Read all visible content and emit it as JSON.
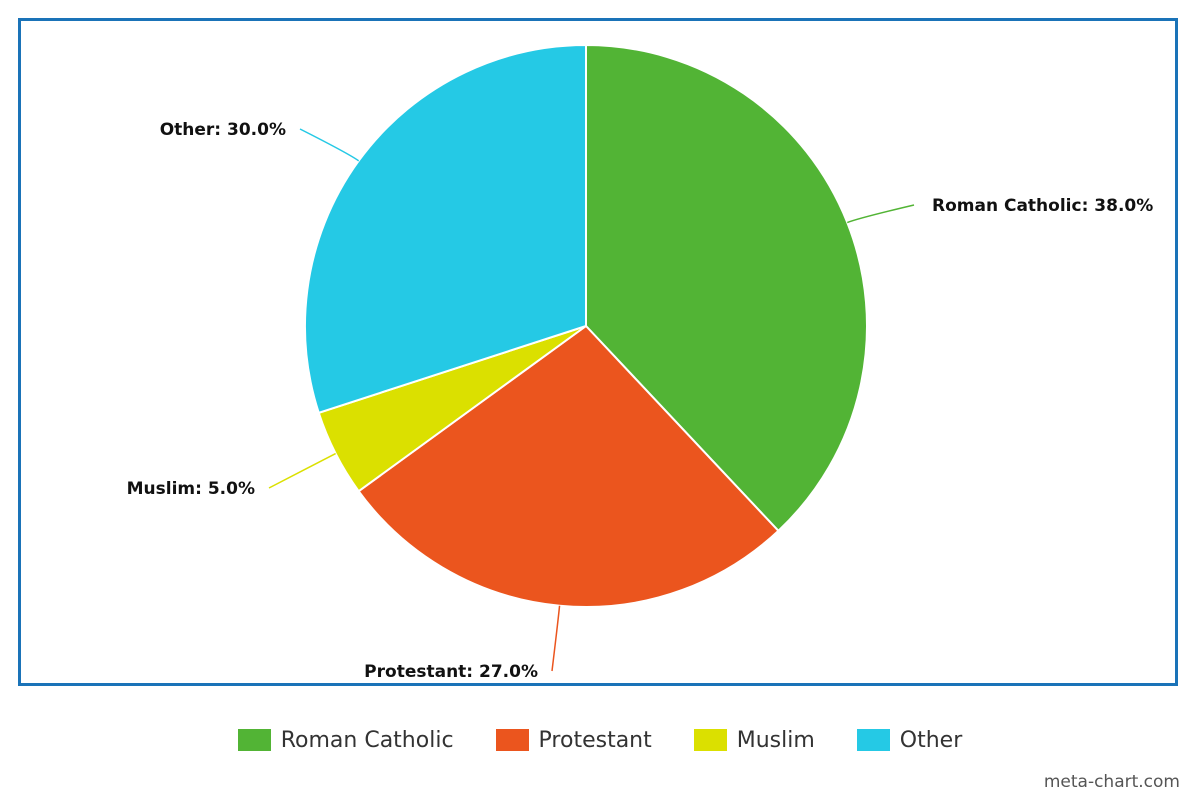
{
  "chart_data": {
    "type": "pie",
    "title": "",
    "slices": [
      {
        "label": "Roman Catholic",
        "value": 38.0,
        "display": "Roman Catholic: 38.0%",
        "color": "#52b435"
      },
      {
        "label": "Protestant",
        "value": 27.0,
        "display": "Protestant: 27.0%",
        "color": "#eb551e"
      },
      {
        "label": "Muslim",
        "value": 5.0,
        "display": "Muslim: 5.0%",
        "color": "#dbe000"
      },
      {
        "label": "Other",
        "value": 30.0,
        "display": "Other: 30.0%",
        "color": "#25c9e5"
      }
    ],
    "legend": {
      "position": "bottom",
      "items": [
        "Roman Catholic",
        "Protestant",
        "Muslim",
        "Other"
      ]
    }
  },
  "frame_color": "#1a73b8",
  "credit": "meta-chart.com"
}
